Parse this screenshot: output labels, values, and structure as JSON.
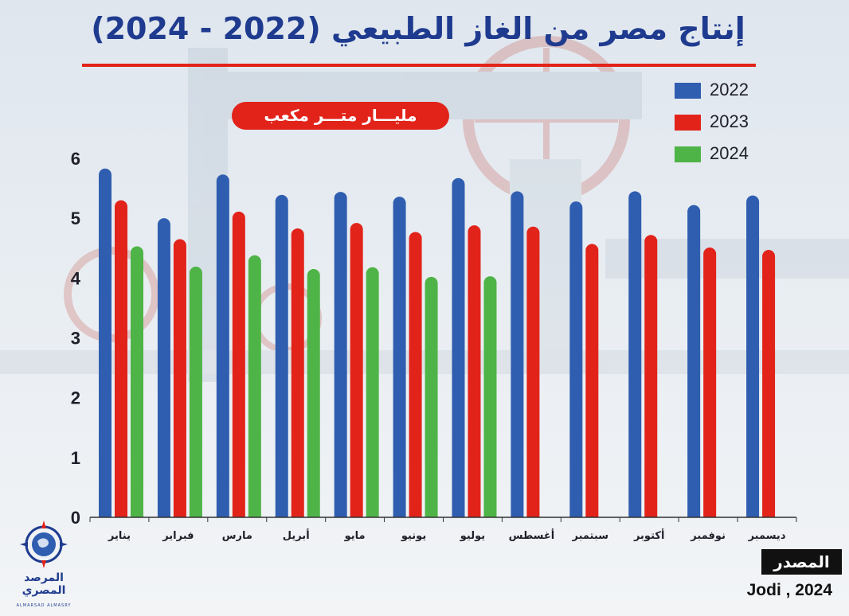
{
  "title": "إنتاج مصر من الغاز الطبيعي (2022 - 2024)",
  "unit": "مليـــار متـــر مكعب",
  "source": {
    "label": "المصدر",
    "text": "Jodi , 2024"
  },
  "logo": {
    "name_ar_line1": "المرصد",
    "name_ar_line2": "المصري",
    "name_en": "ALMARSAD ALMASRY"
  },
  "colors": {
    "2022": "#2f5eb0",
    "2023": "#e2231a",
    "2024": "#4fb447",
    "title": "#1f3b8f",
    "accent": "#e2231a"
  },
  "chart_data": {
    "type": "bar",
    "title": "إنتاج مصر من الغاز الطبيعي (2022 - 2024)",
    "ylabel": "مليـــار متـــر مكعب",
    "xlabel": "",
    "ylim": [
      0,
      6
    ],
    "yticks": [
      0,
      1,
      2,
      3,
      4,
      5,
      6
    ],
    "grid": false,
    "legend_position": "top-right",
    "categories": [
      "يناير",
      "فبراير",
      "مارس",
      "أبريل",
      "مايو",
      "يونيو",
      "يوليو",
      "أغسطس",
      "سبتمبر",
      "أكتوبر",
      "نوفمبر",
      "ديسمبر"
    ],
    "series": [
      {
        "name": "2022",
        "color": "#2f5eb0",
        "values": [
          5.83,
          5.0,
          5.73,
          5.39,
          5.44,
          5.36,
          5.67,
          5.45,
          5.28,
          5.45,
          5.22,
          5.38
        ]
      },
      {
        "name": "2023",
        "color": "#e2231a",
        "values": [
          5.3,
          4.65,
          5.11,
          4.83,
          4.92,
          4.77,
          4.88,
          4.86,
          4.57,
          4.72,
          4.51,
          4.47
        ]
      },
      {
        "name": "2024",
        "color": "#4fb447",
        "values": [
          4.53,
          4.19,
          4.38,
          4.15,
          4.18,
          4.02,
          4.03,
          null,
          null,
          null,
          null,
          null
        ]
      }
    ]
  }
}
